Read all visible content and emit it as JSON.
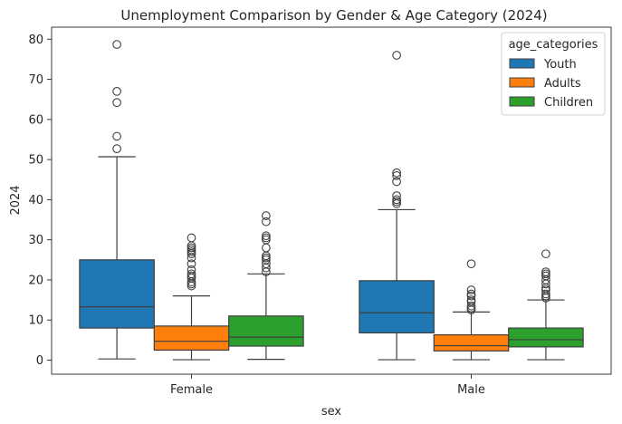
{
  "chart_data": {
    "type": "box",
    "title": "Unemployment Comparison by Gender & Age Category (2024)",
    "xlabel": "sex",
    "ylabel": "2024",
    "categories": [
      "Female",
      "Male"
    ],
    "ylim": [
      -3.5,
      83
    ],
    "yticks": [
      0,
      10,
      20,
      30,
      40,
      50,
      60,
      70,
      80
    ],
    "grid": false,
    "legend": {
      "title": "age_categories",
      "placement": "top-right"
    },
    "series": [
      {
        "name": "Youth",
        "color": "#1f77b4",
        "boxes": [
          {
            "category": "Female",
            "whisker_low": 0.3,
            "q1": 8.0,
            "median": 13.3,
            "q3": 25.0,
            "whisker_high": 50.7,
            "outliers": [
              52.7,
              55.8,
              64.2,
              67.0,
              78.7
            ]
          },
          {
            "category": "Male",
            "whisker_low": 0.1,
            "q1": 6.8,
            "median": 11.8,
            "q3": 19.8,
            "whisker_high": 37.5,
            "outliers": [
              39.0,
              39.5,
              40.0,
              41.0,
              44.5,
              46.0,
              46.7,
              76.0
            ]
          }
        ]
      },
      {
        "name": "Adults",
        "color": "#ff7f0e",
        "boxes": [
          {
            "category": "Female",
            "whisker_low": 0.1,
            "q1": 2.5,
            "median": 4.7,
            "q3": 8.5,
            "whisker_high": 16.0,
            "outliers": [
              18.5,
              19.0,
              19.5,
              20.5,
              21.0,
              21.5,
              22.5,
              24.0,
              25.5,
              26.5,
              27.0,
              27.5,
              28.0,
              28.5,
              30.5
            ]
          },
          {
            "category": "Male",
            "whisker_low": 0.1,
            "q1": 2.3,
            "median": 3.6,
            "q3": 6.3,
            "whisker_high": 12.0,
            "outliers": [
              12.5,
              13.0,
              13.5,
              14.5,
              15.0,
              16.0,
              16.5,
              17.5,
              24.0
            ]
          }
        ]
      },
      {
        "name": "Children",
        "color": "#2ca02c",
        "boxes": [
          {
            "category": "Female",
            "whisker_low": 0.2,
            "q1": 3.5,
            "median": 5.7,
            "q3": 11.0,
            "whisker_high": 21.5,
            "outliers": [
              22.0,
              23.0,
              24.0,
              25.0,
              25.5,
              26.0,
              28.0,
              30.0,
              30.5,
              31.0,
              34.5,
              36.0
            ]
          },
          {
            "category": "Male",
            "whisker_low": 0.1,
            "q1": 3.3,
            "median": 5.1,
            "q3": 8.0,
            "whisker_high": 15.0,
            "outliers": [
              15.5,
              16.0,
              16.5,
              17.5,
              18.0,
              19.0,
              20.0,
              21.0,
              21.5,
              22.0,
              26.5
            ]
          }
        ]
      }
    ]
  }
}
